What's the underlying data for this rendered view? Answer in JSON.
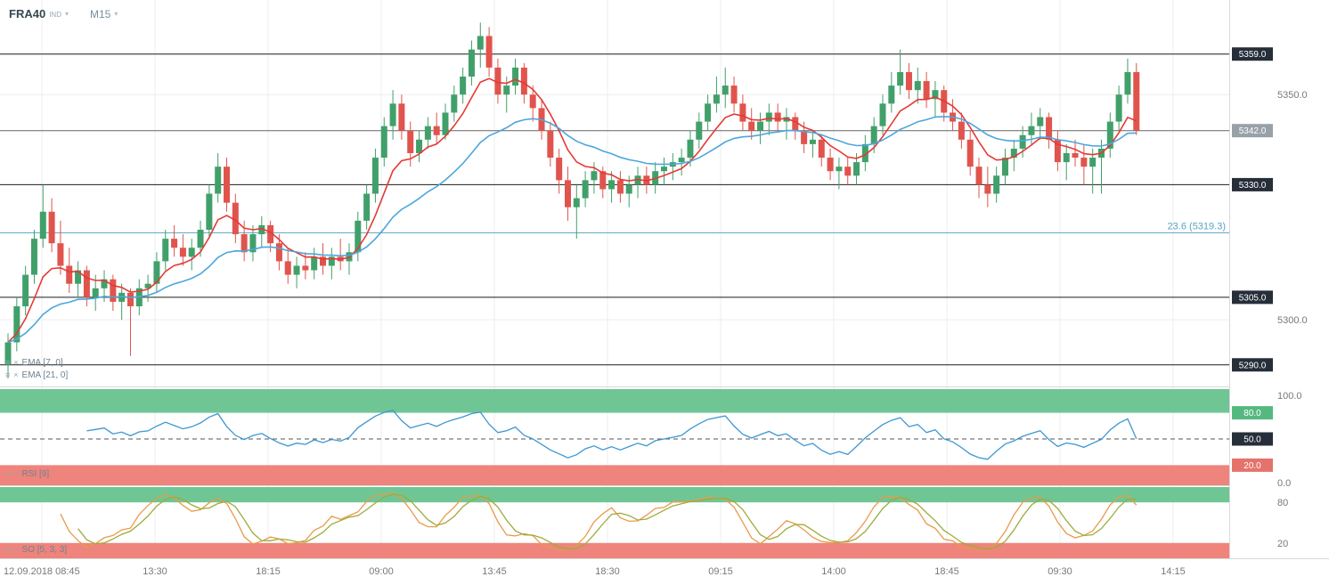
{
  "toolbar": {
    "symbol": "FRA40",
    "symbol_type": "IND",
    "timeframe": "M15"
  },
  "colors": {
    "up_candle": "#41a06a",
    "down_candle": "#e0544d",
    "ema_fast": "#e53935",
    "ema_slow": "#4da6dc",
    "rsi_line": "#3c97d3",
    "band_green": "#6fc694",
    "band_red": "#ee847c",
    "box_green": "#55b97f",
    "box_red": "#e4736b",
    "level_box_bg": "#252e39",
    "current_box_bg": "#99a1a8",
    "fib_line": "#64aac6",
    "grid": "#ededed",
    "separator": "#d9d9d9",
    "level_line": "#1b1b1b",
    "current_line": "#666666",
    "axis_text": "#787878",
    "so_k": "#e89a4a",
    "so_d": "#9fab3a"
  },
  "chart_data": {
    "type": "candlestick",
    "symbol": "FRA40",
    "timeframe": "M15",
    "current_price": 5342.0,
    "ylim": [
      5286,
      5371
    ],
    "x_labels": [
      "12.09.2018 08:45",
      "13:30",
      "18:15",
      "09:00",
      "13:45",
      "18:30",
      "09:15",
      "14:00",
      "18:45",
      "09:30",
      "14:15"
    ],
    "y_ticks": [
      {
        "price": 5350.0,
        "label": "5350.0"
      },
      {
        "price": 5300.0,
        "label": "5300.0"
      }
    ],
    "levels": [
      {
        "price": 5359.0,
        "label": "5359.0",
        "style": "line"
      },
      {
        "price": 5342.0,
        "label": "5342.0",
        "style": "current"
      },
      {
        "price": 5330.0,
        "label": "5330.0",
        "style": "line"
      },
      {
        "price": 5319.3,
        "label": "23.6 (5319.3)",
        "style": "fib"
      },
      {
        "price": 5305.0,
        "label": "5305.0",
        "style": "line"
      },
      {
        "price": 5290.0,
        "label": "5290.0",
        "style": "line"
      }
    ],
    "overlays": [
      {
        "name": "EMA",
        "period": 7,
        "shift": 0,
        "label": "EMA [7, 0]",
        "color": "#e53935"
      },
      {
        "name": "EMA",
        "period": 21,
        "shift": 0,
        "label": "EMA [21, 0]",
        "color": "#4da6dc"
      }
    ],
    "indicators": [
      {
        "name": "RSI",
        "period": 9,
        "label": "RSI [9]",
        "color": "#3c97d3",
        "scale": [
          {
            "v": 100,
            "label": "100.0",
            "style": "plain"
          },
          {
            "v": 80,
            "label": "80.0",
            "style": "green"
          },
          {
            "v": 50,
            "label": "50.0",
            "style": "dark"
          },
          {
            "v": 20,
            "label": "20.0",
            "style": "red"
          },
          {
            "v": 0,
            "label": "0.0",
            "style": "plain"
          }
        ]
      },
      {
        "name": "SO",
        "params": [
          5,
          3,
          3
        ],
        "label": "SO [5, 3, 3]",
        "colors": [
          "#e89a4a",
          "#9fab3a"
        ],
        "scale": [
          {
            "v": 80,
            "label": "80"
          },
          {
            "v": 20,
            "label": "20"
          }
        ]
      }
    ],
    "candles": [
      [
        5290,
        5297,
        5287,
        5295
      ],
      [
        5295,
        5305,
        5293,
        5303
      ],
      [
        5303,
        5312,
        5301,
        5310
      ],
      [
        5310,
        5320,
        5308,
        5318
      ],
      [
        5318,
        5330,
        5316,
        5324
      ],
      [
        5324,
        5327,
        5315,
        5317
      ],
      [
        5317,
        5322,
        5310,
        5312
      ],
      [
        5312,
        5316,
        5306,
        5308
      ],
      [
        5308,
        5313,
        5305,
        5311
      ],
      [
        5311,
        5312,
        5303,
        5305
      ],
      [
        5305,
        5310,
        5302,
        5307
      ],
      [
        5307,
        5311,
        5304,
        5309
      ],
      [
        5309,
        5310,
        5302,
        5304
      ],
      [
        5304,
        5308,
        5300,
        5306
      ],
      [
        5306,
        5307,
        5292,
        5303
      ],
      [
        5303,
        5309,
        5301,
        5307
      ],
      [
        5307,
        5310,
        5304,
        5308
      ],
      [
        5308,
        5315,
        5306,
        5313
      ],
      [
        5313,
        5320,
        5311,
        5318
      ],
      [
        5318,
        5321,
        5314,
        5316
      ],
      [
        5316,
        5319,
        5312,
        5314
      ],
      [
        5314,
        5318,
        5311,
        5316
      ],
      [
        5316,
        5322,
        5314,
        5320
      ],
      [
        5320,
        5330,
        5318,
        5328
      ],
      [
        5328,
        5337,
        5326,
        5334
      ],
      [
        5334,
        5336,
        5324,
        5326
      ],
      [
        5326,
        5328,
        5317,
        5319
      ],
      [
        5319,
        5322,
        5313,
        5315
      ],
      [
        5315,
        5321,
        5313,
        5319
      ],
      [
        5319,
        5323,
        5316,
        5321
      ],
      [
        5321,
        5322,
        5315,
        5317
      ],
      [
        5317,
        5319,
        5311,
        5313
      ],
      [
        5313,
        5316,
        5308,
        5310
      ],
      [
        5310,
        5314,
        5307,
        5312
      ],
      [
        5312,
        5315,
        5309,
        5311
      ],
      [
        5311,
        5316,
        5309,
        5314
      ],
      [
        5314,
        5317,
        5310,
        5312
      ],
      [
        5312,
        5316,
        5309,
        5314
      ],
      [
        5314,
        5318,
        5311,
        5313
      ],
      [
        5313,
        5317,
        5310,
        5315
      ],
      [
        5315,
        5324,
        5313,
        5322
      ],
      [
        5322,
        5330,
        5320,
        5328
      ],
      [
        5328,
        5338,
        5326,
        5336
      ],
      [
        5336,
        5345,
        5334,
        5343
      ],
      [
        5343,
        5351,
        5340,
        5348
      ],
      [
        5348,
        5350,
        5340,
        5342
      ],
      [
        5342,
        5344,
        5334,
        5337
      ],
      [
        5337,
        5342,
        5335,
        5340
      ],
      [
        5340,
        5345,
        5338,
        5343
      ],
      [
        5343,
        5346,
        5339,
        5341
      ],
      [
        5341,
        5348,
        5340,
        5346
      ],
      [
        5346,
        5352,
        5344,
        5350
      ],
      [
        5350,
        5356,
        5348,
        5354
      ],
      [
        5354,
        5362,
        5352,
        5360
      ],
      [
        5360,
        5366,
        5356,
        5363
      ],
      [
        5363,
        5365,
        5354,
        5356
      ],
      [
        5356,
        5358,
        5348,
        5350
      ],
      [
        5350,
        5354,
        5346,
        5352
      ],
      [
        5352,
        5358,
        5350,
        5356
      ],
      [
        5356,
        5357,
        5348,
        5350
      ],
      [
        5350,
        5352,
        5344,
        5347
      ],
      [
        5347,
        5349,
        5340,
        5342
      ],
      [
        5342,
        5344,
        5334,
        5336
      ],
      [
        5336,
        5338,
        5328,
        5331
      ],
      [
        5331,
        5334,
        5322,
        5325
      ],
      [
        5325,
        5330,
        5318,
        5327
      ],
      [
        5327,
        5333,
        5325,
        5331
      ],
      [
        5331,
        5335,
        5328,
        5333
      ],
      [
        5333,
        5334,
        5327,
        5329
      ],
      [
        5329,
        5333,
        5326,
        5331
      ],
      [
        5331,
        5333,
        5326,
        5328
      ],
      [
        5328,
        5332,
        5325,
        5330
      ],
      [
        5330,
        5334,
        5327,
        5332
      ],
      [
        5332,
        5334,
        5328,
        5330
      ],
      [
        5330,
        5335,
        5328,
        5333
      ],
      [
        5333,
        5336,
        5330,
        5334
      ],
      [
        5334,
        5337,
        5331,
        5335
      ],
      [
        5335,
        5338,
        5332,
        5336
      ],
      [
        5336,
        5342,
        5334,
        5340
      ],
      [
        5340,
        5346,
        5338,
        5344
      ],
      [
        5344,
        5350,
        5342,
        5348
      ],
      [
        5348,
        5354,
        5346,
        5350
      ],
      [
        5350,
        5356,
        5347,
        5352
      ],
      [
        5352,
        5354,
        5346,
        5348
      ],
      [
        5348,
        5350,
        5342,
        5344
      ],
      [
        5344,
        5347,
        5340,
        5342
      ],
      [
        5342,
        5346,
        5339,
        5344
      ],
      [
        5344,
        5348,
        5341,
        5346
      ],
      [
        5346,
        5348,
        5342,
        5344
      ],
      [
        5344,
        5347,
        5340,
        5345
      ],
      [
        5345,
        5346,
        5340,
        5342
      ],
      [
        5342,
        5344,
        5337,
        5339
      ],
      [
        5339,
        5342,
        5336,
        5340
      ],
      [
        5340,
        5341,
        5334,
        5336
      ],
      [
        5336,
        5338,
        5331,
        5333
      ],
      [
        5333,
        5336,
        5329,
        5334
      ],
      [
        5334,
        5336,
        5330,
        5332
      ],
      [
        5332,
        5337,
        5330,
        5335
      ],
      [
        5335,
        5341,
        5333,
        5339
      ],
      [
        5339,
        5345,
        5337,
        5343
      ],
      [
        5343,
        5350,
        5341,
        5348
      ],
      [
        5348,
        5355,
        5346,
        5352
      ],
      [
        5352,
        5360,
        5350,
        5355
      ],
      [
        5355,
        5357,
        5349,
        5351
      ],
      [
        5351,
        5356,
        5348,
        5353
      ],
      [
        5353,
        5355,
        5347,
        5349
      ],
      [
        5349,
        5353,
        5345,
        5351
      ],
      [
        5351,
        5352,
        5344,
        5346
      ],
      [
        5346,
        5349,
        5342,
        5344
      ],
      [
        5344,
        5346,
        5338,
        5340
      ],
      [
        5340,
        5342,
        5332,
        5334
      ],
      [
        5334,
        5336,
        5327,
        5330
      ],
      [
        5330,
        5334,
        5325,
        5328
      ],
      [
        5328,
        5334,
        5326,
        5332
      ],
      [
        5332,
        5338,
        5330,
        5336
      ],
      [
        5336,
        5340,
        5333,
        5338
      ],
      [
        5338,
        5343,
        5336,
        5341
      ],
      [
        5341,
        5346,
        5339,
        5343
      ],
      [
        5343,
        5347,
        5340,
        5345
      ],
      [
        5345,
        5346,
        5338,
        5340
      ],
      [
        5340,
        5342,
        5333,
        5335
      ],
      [
        5335,
        5339,
        5331,
        5337
      ],
      [
        5337,
        5340,
        5334,
        5336
      ],
      [
        5336,
        5339,
        5330,
        5334
      ],
      [
        5334,
        5338,
        5328,
        5336
      ],
      [
        5336,
        5340,
        5328,
        5338
      ],
      [
        5338,
        5346,
        5336,
        5344
      ],
      [
        5344,
        5352,
        5342,
        5350
      ],
      [
        5350,
        5358,
        5348,
        5355
      ],
      [
        5355,
        5357,
        5341,
        5342
      ]
    ]
  }
}
